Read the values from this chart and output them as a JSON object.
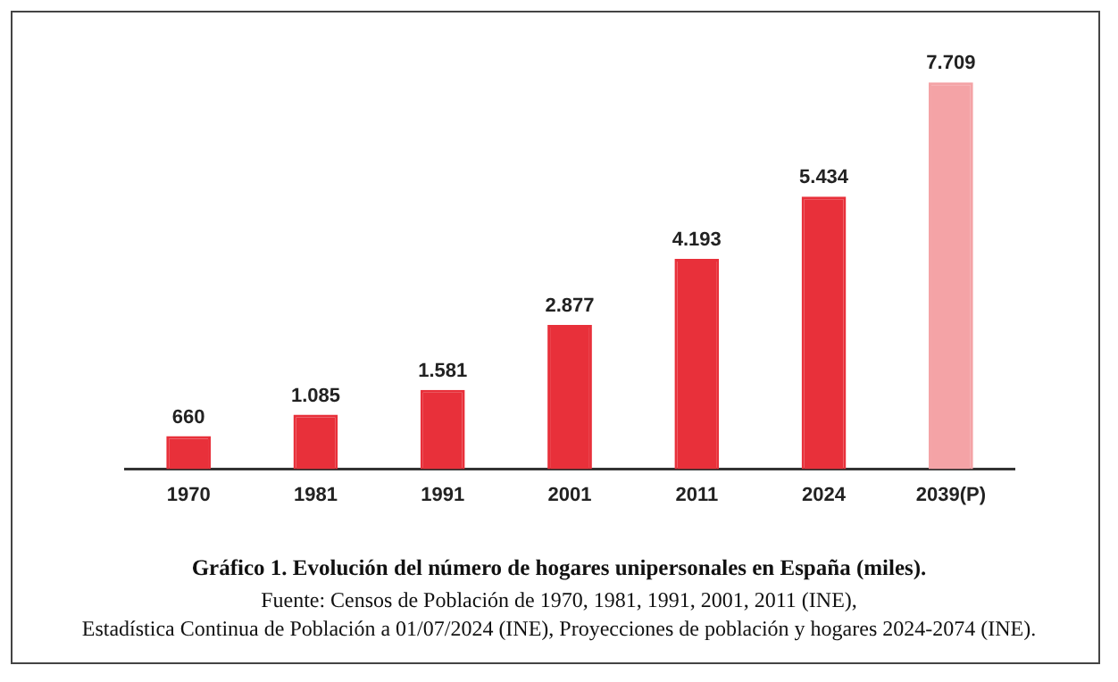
{
  "chart_data": {
    "type": "bar",
    "title": "Gráfico 1. Evolución del número de hogares unipersonales en España (miles).",
    "categories": [
      "1970",
      "1981",
      "1991",
      "2001",
      "2011",
      "2024",
      "2039(P)"
    ],
    "values": [
      660,
      1085,
      1581,
      2877,
      4193,
      5434,
      7709
    ],
    "value_labels": [
      "660",
      "1.085",
      "1.581",
      "2.877",
      "4.193",
      "5.434",
      "7.709"
    ],
    "colors": [
      "#e8303a",
      "#e8303a",
      "#e8303a",
      "#e8303a",
      "#e8303a",
      "#e8303a",
      "#f4a3a6"
    ],
    "annotations": [
      "Fuente: Censos de Población de 1970, 1981, 1991, 2001, 2011 (INE),",
      "Estadística Continua de Población a 01/07/2024 (INE), Proyecciones de población y hogares 2024-2074 (INE)."
    ],
    "legend": false,
    "grid": false
  }
}
